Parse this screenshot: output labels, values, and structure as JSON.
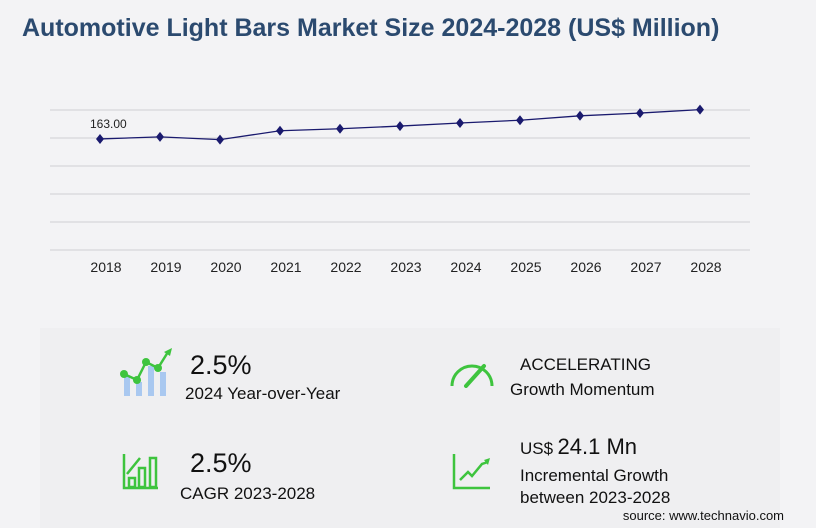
{
  "title": "Automotive Light Bars Market Size 2024-2028 (US$ Million)",
  "chart_data": {
    "type": "line",
    "title": "Automotive Light Bars Market Size 2024-2028 (US$ Million)",
    "categories": [
      "2018",
      "2019",
      "2020",
      "2021",
      "2022",
      "2023",
      "2024",
      "2025",
      "2026",
      "2027",
      "2028"
    ],
    "values": [
      163.0,
      166.0,
      162.0,
      175.0,
      178.0,
      181.9,
      186.4,
      190.5,
      197.0,
      201.0,
      206.0
    ],
    "data_labels": [
      {
        "index": 0,
        "text": "163.00"
      }
    ],
    "ylim": [
      0,
      205.5
    ],
    "grid": true,
    "line_color": "#1a1a6e"
  },
  "stats": {
    "yoy_value": "2.5%",
    "yoy_label": "2024 Year-over-Year",
    "momentum_value": "ACCELERATING",
    "momentum_label": "Growth Momentum",
    "cagr_value": "2.5%",
    "cagr_label": "CAGR 2023-2028",
    "incr_prefix": "US$",
    "incr_value": "24.1 Mn",
    "incr_label1": "Incremental Growth",
    "incr_label2": "between 2023-2028"
  },
  "source": "source: www.technavio.com",
  "colors": {
    "accent_green": "#3ec43e",
    "bar_blue": "#a9c8f0",
    "title": "#2b4a6f"
  }
}
